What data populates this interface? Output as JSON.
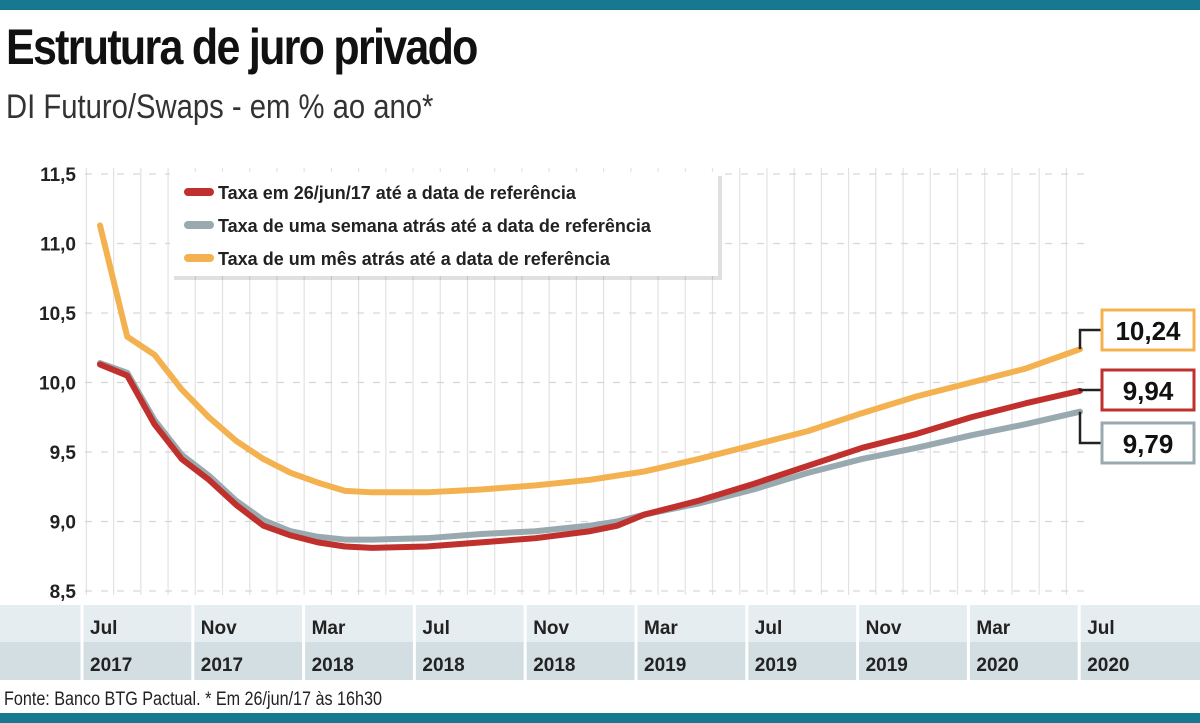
{
  "title": "Estrutura de juro privado",
  "subtitle": "DI Futuro/Swaps - em % ao ano*",
  "source": "Fonte: Banco BTG Pactual. * Em 26/jun/17 às 16h30",
  "colors": {
    "accent": "#16798f",
    "red": "#c0302c",
    "gray": "#98aab0",
    "orange": "#f4b14f"
  },
  "chart_data": {
    "type": "line",
    "title": "Estrutura de juro privado",
    "subtitle": "DI Futuro/Swaps - em % ao ano*",
    "ylim": [
      8.5,
      11.5
    ],
    "yticks": [
      "11,5",
      "11,0",
      "10,5",
      "10,0",
      "9,5",
      "9,0",
      "8,5"
    ],
    "ytick_values": [
      11.5,
      11.0,
      10.5,
      10.0,
      9.5,
      9.0,
      8.5
    ],
    "xticks": [
      {
        "month": "Jul",
        "year": "2017",
        "date": "2017-07"
      },
      {
        "month": "Nov",
        "year": "2017",
        "date": "2017-11"
      },
      {
        "month": "Mar",
        "year": "2018",
        "date": "2018-03"
      },
      {
        "month": "Jul",
        "year": "2018",
        "date": "2018-07"
      },
      {
        "month": "Nov",
        "year": "2018",
        "date": "2018-11"
      },
      {
        "month": "Mar",
        "year": "2019",
        "date": "2019-03"
      },
      {
        "month": "Jul",
        "year": "2019",
        "date": "2019-07"
      },
      {
        "month": "Nov",
        "year": "2019",
        "date": "2019-11"
      },
      {
        "month": "Mar",
        "year": "2020",
        "date": "2020-03"
      },
      {
        "month": "Jul",
        "year": "2020",
        "date": "2020-07"
      }
    ],
    "grid": true,
    "legend_position": "top-left",
    "x": [
      "2017-07",
      "2017-08",
      "2017-09",
      "2017-10",
      "2017-11",
      "2017-12",
      "2018-01",
      "2018-02",
      "2018-03",
      "2018-04",
      "2018-05",
      "2018-07",
      "2018-09",
      "2018-11",
      "2019-01",
      "2019-02",
      "2019-03",
      "2019-05",
      "2019-07",
      "2019-09",
      "2019-11",
      "2020-01",
      "2020-03",
      "2020-05",
      "2020-07"
    ],
    "series": [
      {
        "name": "Taxa em 26/jun/17 até a data de referência",
        "color": "#c0302c",
        "end_label": "9,94",
        "values": [
          10.13,
          10.05,
          9.7,
          9.45,
          9.3,
          9.12,
          8.97,
          8.9,
          8.85,
          8.82,
          8.81,
          8.82,
          8.85,
          8.88,
          8.93,
          8.97,
          9.05,
          9.15,
          9.27,
          9.4,
          9.53,
          9.63,
          9.75,
          9.85,
          9.94
        ]
      },
      {
        "name": "Taxa de uma semana atrás até a data de referência",
        "color": "#98aab0",
        "end_label": "9,79",
        "values": [
          10.14,
          10.07,
          9.73,
          9.48,
          9.33,
          9.15,
          9.01,
          8.93,
          8.89,
          8.87,
          8.87,
          8.88,
          8.91,
          8.93,
          8.97,
          9.0,
          9.05,
          9.13,
          9.23,
          9.35,
          9.45,
          9.53,
          9.62,
          9.7,
          9.79
        ]
      },
      {
        "name": "Taxa de um mês atrás até a data de referência",
        "color": "#f4b14f",
        "end_label": "10,24",
        "values": [
          11.13,
          10.33,
          10.2,
          9.95,
          9.75,
          9.58,
          9.45,
          9.35,
          9.28,
          9.22,
          9.21,
          9.21,
          9.23,
          9.26,
          9.3,
          9.33,
          9.36,
          9.45,
          9.55,
          9.65,
          9.78,
          9.9,
          10.0,
          10.1,
          10.24
        ]
      }
    ]
  }
}
